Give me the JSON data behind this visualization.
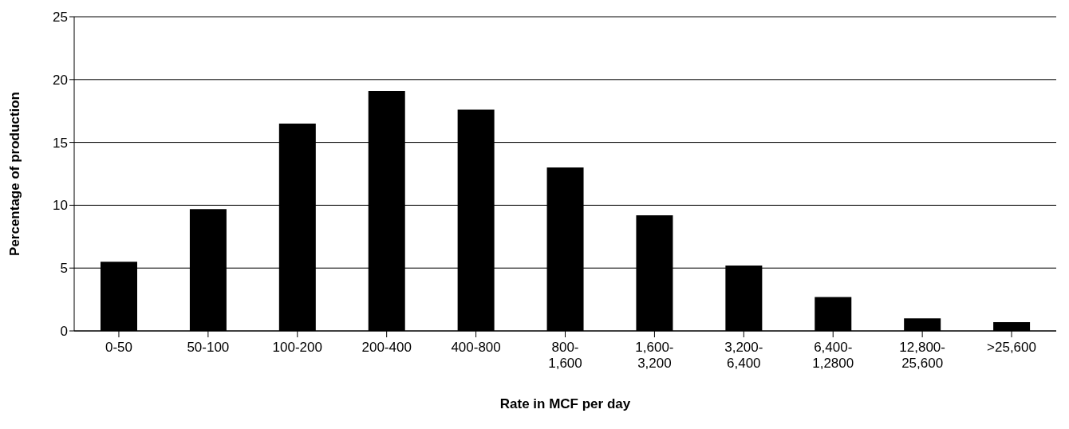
{
  "chart_data": {
    "type": "bar",
    "xlabel": "Rate in MCF per day",
    "ylabel": "Percentage of production",
    "categories": [
      "0-50",
      "50-100",
      "100-200",
      "200-400",
      "400-800",
      "800-1,600",
      "1,600-3,200",
      "3,200-6,400",
      "6,400-1,2800",
      "12,800-25,600",
      ">25,600"
    ],
    "values": [
      5.5,
      9.7,
      16.5,
      19.1,
      17.6,
      13.0,
      9.2,
      5.2,
      2.7,
      1.0,
      0.7
    ],
    "color": "#000000",
    "ylim": [
      0,
      25
    ],
    "yticks": [
      0,
      5,
      10,
      15,
      20,
      25
    ],
    "grid": "y"
  }
}
